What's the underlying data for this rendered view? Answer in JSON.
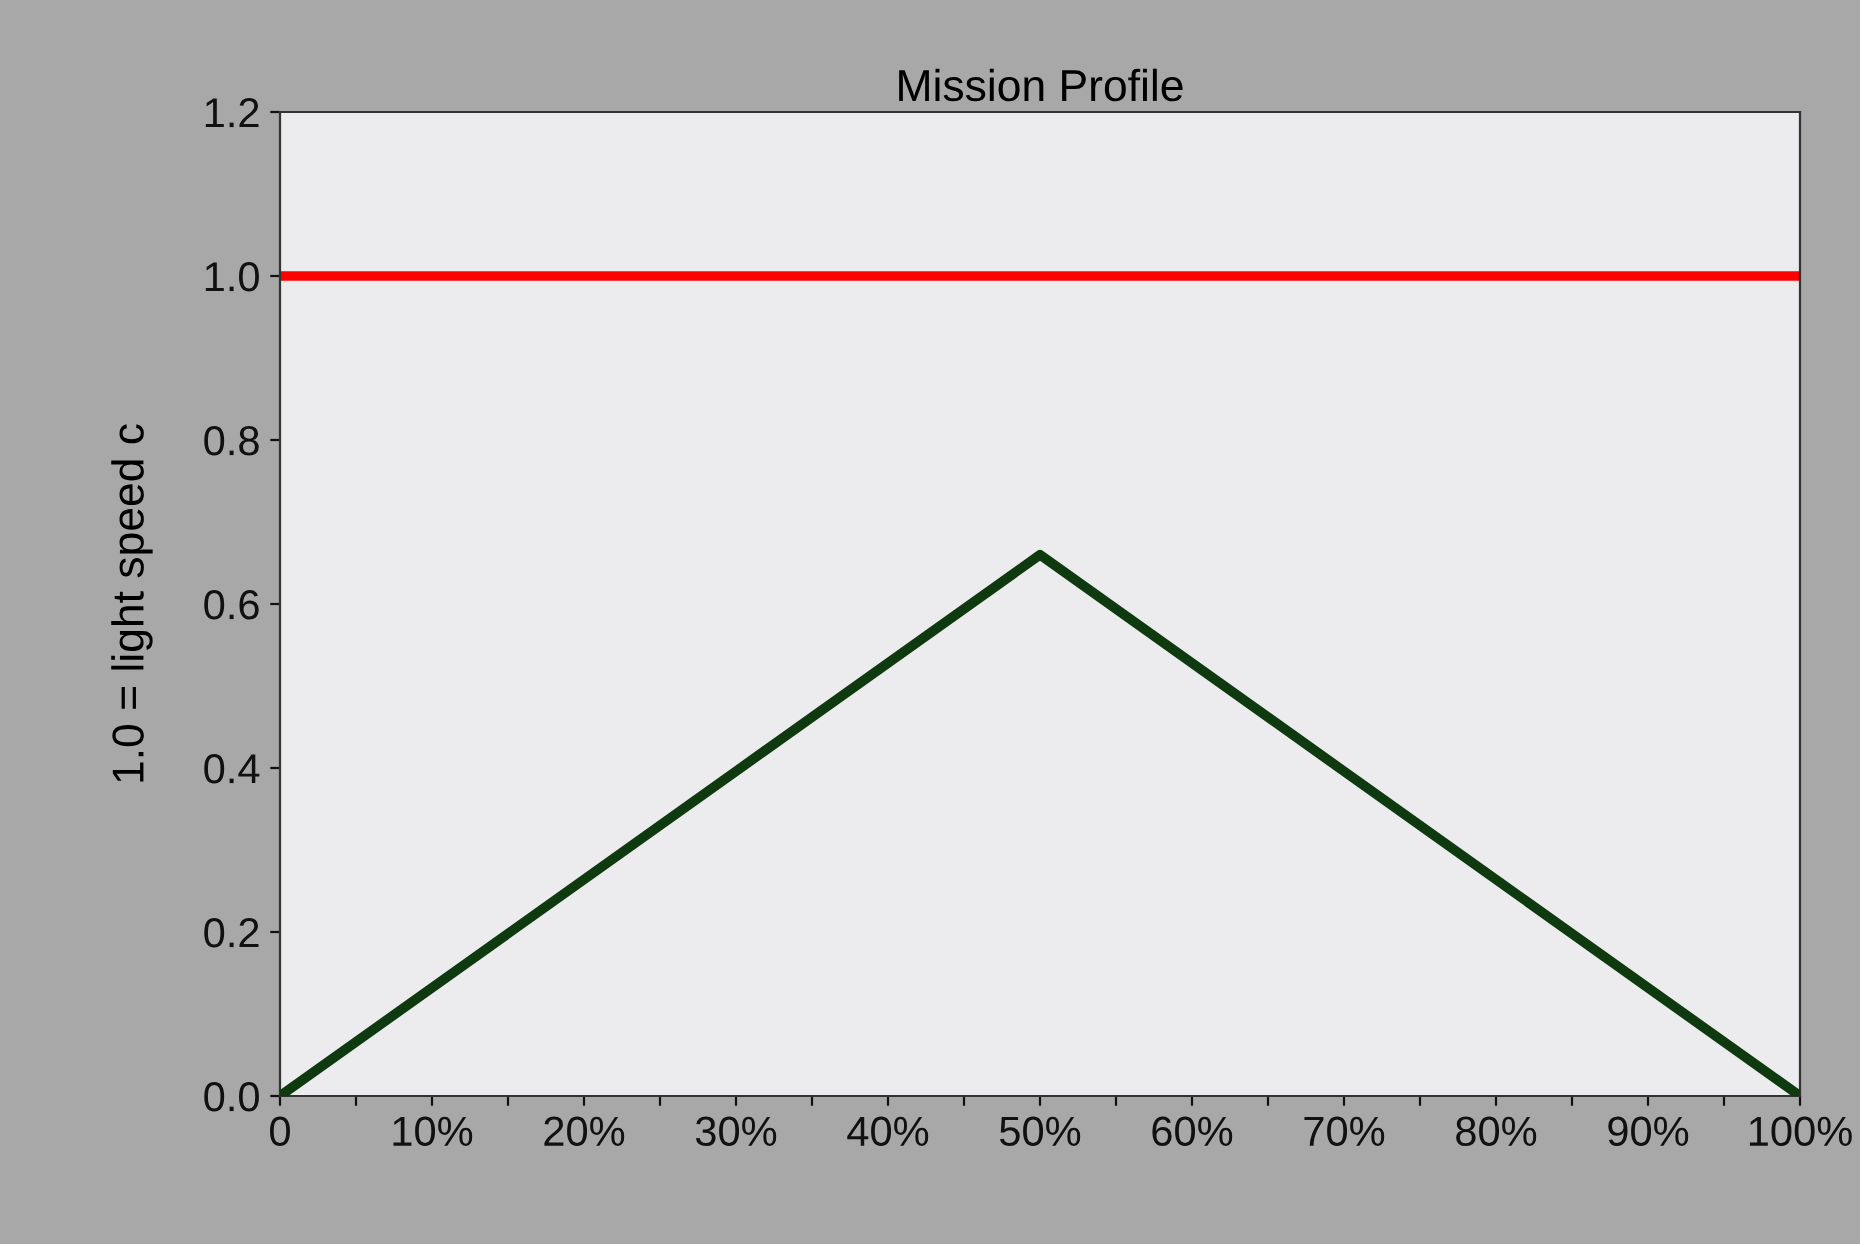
{
  "chart_data": {
    "type": "line",
    "title": "Mission Profile",
    "ylabel": "1.0 = light speed c",
    "x": [
      0,
      50,
      100
    ],
    "series": [
      {
        "color": "#0f3a0f",
        "values": [
          0,
          0.66,
          0
        ]
      }
    ],
    "ref_lines": [
      {
        "axis": "y",
        "value": 1.0,
        "color": "#ff0000"
      }
    ],
    "xlim": [
      0,
      100
    ],
    "ylim": [
      0,
      1.2
    ],
    "xticks": [
      {
        "value": 0,
        "label": "0"
      },
      {
        "value": 5,
        "label": null
      },
      {
        "value": 10,
        "label": "10%"
      },
      {
        "value": 15,
        "label": null
      },
      {
        "value": 20,
        "label": "20%"
      },
      {
        "value": 25,
        "label": null
      },
      {
        "value": 30,
        "label": "30%"
      },
      {
        "value": 35,
        "label": null
      },
      {
        "value": 40,
        "label": "40%"
      },
      {
        "value": 45,
        "label": null
      },
      {
        "value": 50,
        "label": "50%"
      },
      {
        "value": 55,
        "label": null
      },
      {
        "value": 60,
        "label": "60%"
      },
      {
        "value": 65,
        "label": null
      },
      {
        "value": 70,
        "label": "70%"
      },
      {
        "value": 75,
        "label": null
      },
      {
        "value": 80,
        "label": "80%"
      },
      {
        "value": 85,
        "label": null
      },
      {
        "value": 90,
        "label": "90%"
      },
      {
        "value": 95,
        "label": null
      },
      {
        "value": 100,
        "label": "100%"
      }
    ],
    "yticks": [
      {
        "value": 0,
        "label": "0.0"
      },
      {
        "value": 0.2,
        "label": "0.2"
      },
      {
        "value": 0.4,
        "label": "0.4"
      },
      {
        "value": 0.6,
        "label": "0.6"
      },
      {
        "value": 0.8,
        "label": "0.8"
      },
      {
        "value": 1.0,
        "label": "1.0"
      },
      {
        "value": 1.2,
        "label": "1.2"
      }
    ],
    "grid": false,
    "legend": false,
    "marker": "none",
    "line_style": "solid"
  }
}
